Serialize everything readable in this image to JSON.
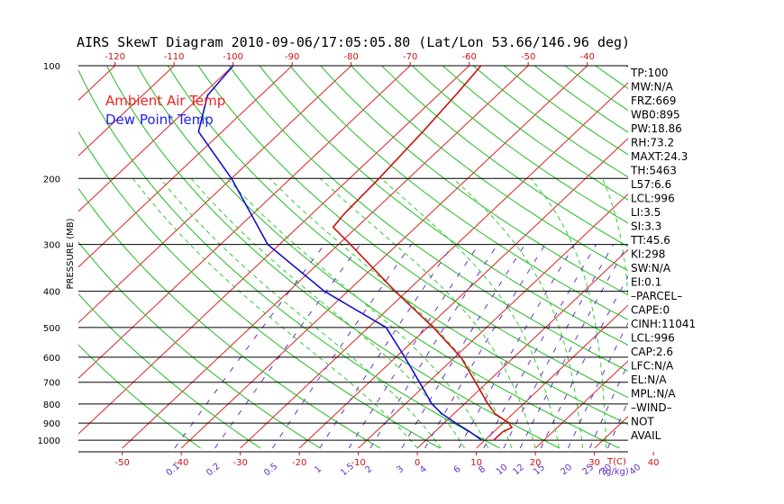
{
  "chart_data": {
    "type": "line",
    "title": "AIRS SkewT Diagram 2010-09-06/17:05:05.80 (Lat/Lon 53.66/146.96 deg)",
    "ylabel": "PRESSURE (MB)",
    "xlabel": "T(C)",
    "mixing_ratio_unit": "r(g/kg)",
    "pressure_ticks": [
      100,
      200,
      300,
      400,
      500,
      600,
      700,
      800,
      900,
      1000
    ],
    "temp_ticks_bottom": [
      -50,
      -40,
      -30,
      -20,
      -10,
      0,
      10,
      20,
      30,
      40
    ],
    "temp_ticks_top": [
      -120,
      -110,
      -100,
      -90,
      -80,
      -70,
      -60,
      -50,
      -40
    ],
    "mixing_ratio_ticks": [
      "0.1",
      "0.2",
      "0.5",
      "1",
      "1.5",
      "2",
      "3",
      "4",
      "6",
      "8",
      "10",
      "12",
      "15",
      "20",
      "25",
      "30",
      "40"
    ],
    "mixing_ratio_values": [
      0.1,
      0.2,
      0.5,
      1,
      1.5,
      2,
      3,
      4,
      6,
      8,
      10,
      12,
      15,
      20,
      25,
      30,
      40
    ],
    "ylim": [
      100,
      1050
    ],
    "legend": [
      {
        "name": "Ambient Air Temp",
        "color": "#ee2222"
      },
      {
        "name": "Dew Point Temp",
        "color": "#2222ee"
      }
    ],
    "series": [
      {
        "name": "Ambient Air Temp",
        "color": "#cc1111",
        "p": [
          1000,
          950,
          925,
          900,
          850,
          800,
          700,
          600,
          500,
          400,
          300,
          270,
          250,
          200,
          150,
          120,
          100
        ],
        "t": [
          11.5,
          11.5,
          12.3,
          11.0,
          7.0,
          4.0,
          -2.0,
          -9.0,
          -19.0,
          -32.0,
          -48.0,
          -54.0,
          -54.5,
          -55.0,
          -56.0,
          -57.0,
          -58.0
        ]
      },
      {
        "name": "Dew Point Temp",
        "color": "#1111cc",
        "p": [
          1000,
          950,
          900,
          850,
          800,
          700,
          600,
          500,
          400,
          300,
          200,
          150,
          120,
          100
        ],
        "t": [
          9.5,
          6.0,
          2.0,
          -2.0,
          -5.5,
          -11.5,
          -18.5,
          -27.0,
          -44.0,
          -62.0,
          -80.0,
          -94.0,
          -99.0,
          -100.0
        ]
      }
    ],
    "indices": [
      "TP:100",
      "MW:N/A",
      "FRZ:669",
      "WB0:895",
      "PW:18.86",
      "RH:73.2",
      "MAXT:24.3",
      "TH:5463",
      "L57:6.6",
      "LCL:996",
      "LI:3.5",
      "SI:3.3",
      "TT:45.6",
      "KI:298",
      "SW:N/A",
      "EI:0.1",
      "–PARCEL–",
      "CAPE:0",
      "CINH:11041",
      "LCL:996",
      "CAP:2.6",
      "LFC:N/A",
      "EL:N/A",
      "MPL:N/A",
      "–WIND–",
      "NOT",
      "AVAIL"
    ],
    "colors": {
      "isotherm": "#dd2222",
      "dry_adiabat": "#22bb22",
      "moist_adiabat": "#33cc33",
      "mixing_ratio": "#6633cc",
      "isobar": "#000000",
      "tick_top": "#cc1111",
      "tick_bottom": "#cc1111",
      "tick_mr": "#6633cc"
    }
  }
}
